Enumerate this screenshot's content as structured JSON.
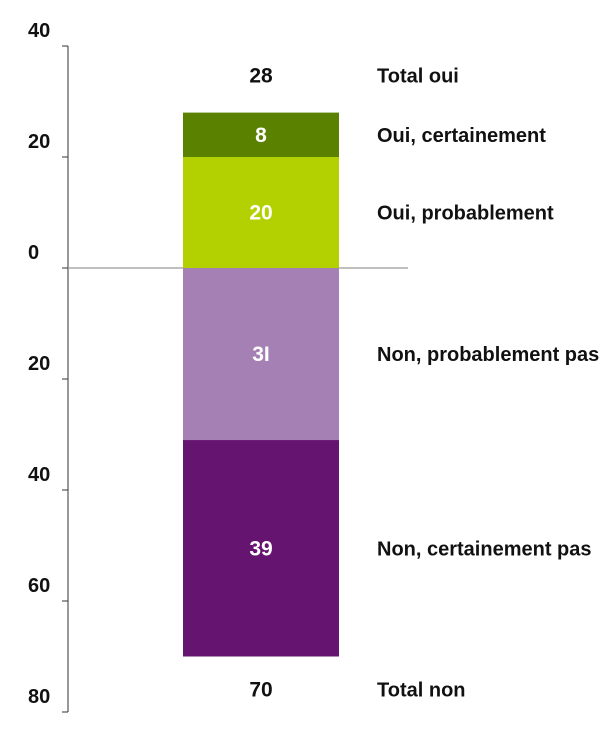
{
  "chart_data": {
    "type": "bar",
    "subtype": "diverging-stacked",
    "ylim": [
      -80,
      40
    ],
    "y_ticks": [
      {
        "value": 40,
        "label": "40"
      },
      {
        "value": 20,
        "label": "20"
      },
      {
        "value": 0,
        "label": "0"
      },
      {
        "value": -20,
        "label": "20"
      },
      {
        "value": -40,
        "label": "40"
      },
      {
        "value": -60,
        "label": "60"
      },
      {
        "value": -80,
        "label": "80"
      }
    ],
    "segments": [
      {
        "name": "Oui, certainement",
        "value": 8,
        "label": "8",
        "direction": "positive",
        "color": "#5a8100"
      },
      {
        "name": "Oui, probablement",
        "value": 20,
        "label": "20",
        "direction": "positive",
        "color": "#b3d000"
      },
      {
        "name": "Non, probablement pas",
        "value": 31,
        "label": "3I",
        "direction": "negative",
        "color": "#a580b4"
      },
      {
        "name": "Non, certainement pas",
        "value": 39,
        "label": "39",
        "direction": "negative",
        "color": "#65146f"
      }
    ],
    "totals": [
      {
        "name": "Total oui",
        "value": 28,
        "label": "28",
        "direction": "positive"
      },
      {
        "name": "Total non",
        "value": 70,
        "label": "70",
        "direction": "negative"
      }
    ],
    "grid": false,
    "legend": "right"
  }
}
